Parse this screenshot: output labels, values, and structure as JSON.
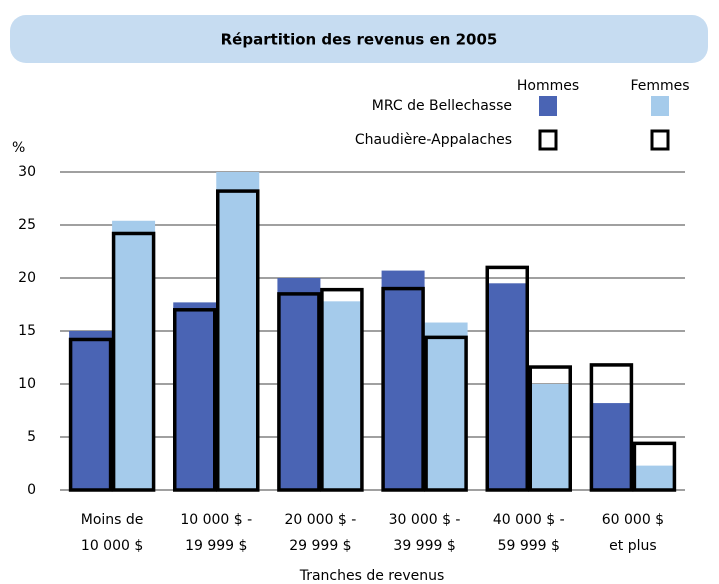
{
  "chart_data": {
    "type": "bar",
    "title": "Répartition des revenus en 2005",
    "y_label": "%",
    "x_label": "Tranches de revenus",
    "categories": [
      [
        "Moins de",
        "10 000 $"
      ],
      [
        "10 000 $ -",
        "19 999 $"
      ],
      [
        "20 000 $ -",
        "29 999 $"
      ],
      [
        "30 000 $ -",
        "39 999 $"
      ],
      [
        "40 000 $ -",
        "59 999 $"
      ],
      [
        "60 000 $",
        "et plus"
      ]
    ],
    "legend_columns": [
      "Hommes",
      "Femmes"
    ],
    "series": [
      {
        "name": "MRC de Bellechasse",
        "style": "filled",
        "colors": [
          "#4a64b4",
          "#a5cbeb"
        ],
        "values": [
          [
            15.0,
            17.7,
            20.0,
            20.7,
            19.5,
            8.2
          ],
          [
            25.4,
            30.0,
            17.8,
            15.8,
            10.0,
            2.3
          ]
        ]
      },
      {
        "name": "Chaudière-Appalaches",
        "style": "outline",
        "colors": [
          "#000000",
          "#000000"
        ],
        "values": [
          [
            14.2,
            17.0,
            18.5,
            19.0,
            21.0,
            11.8
          ],
          [
            24.2,
            28.2,
            18.9,
            14.4,
            11.6,
            4.4
          ]
        ]
      }
    ],
    "ylim": [
      0,
      30
    ],
    "yticks": [
      0,
      5,
      10,
      15,
      20,
      25,
      30
    ],
    "grid": true
  }
}
